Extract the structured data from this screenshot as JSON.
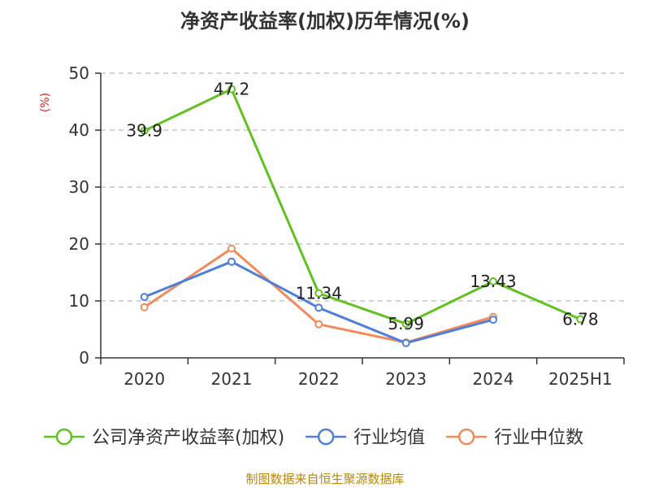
{
  "chart_data": {
    "type": "line",
    "title": "净资产收益率(加权)历年情况(%)",
    "ylabel": "(%)",
    "xlabel": "",
    "categories": [
      "2020",
      "2021",
      "2022",
      "2023",
      "2024",
      "2025H1"
    ],
    "yticks": [
      "0",
      "10",
      "20",
      "30",
      "40",
      "50"
    ],
    "ylim": [
      0,
      50
    ],
    "grid": true,
    "legend_position": "bottom",
    "series": [
      {
        "name": "公司净资产收益率(加权)",
        "color": "#5fc220",
        "values": [
          39.9,
          47.2,
          11.34,
          5.99,
          13.43,
          6.78
        ],
        "labels": [
          "39.9",
          "47.2",
          "11.34",
          "5.99",
          "13.43",
          "6.78"
        ]
      },
      {
        "name": "行业均值",
        "color": "#4f7fdb",
        "values": [
          10.7,
          16.9,
          8.8,
          2.6,
          6.7,
          null
        ]
      },
      {
        "name": "行业中位数",
        "color": "#f28b59",
        "values": [
          8.9,
          19.2,
          5.9,
          2.7,
          7.2,
          null
        ]
      }
    ]
  },
  "footer": {
    "source": "制图数据来自恒生聚源数据库"
  }
}
